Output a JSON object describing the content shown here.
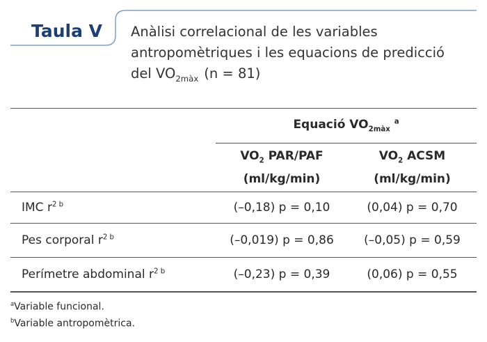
{
  "header": {
    "label": "Taula V",
    "title": {
      "line1": "Anàlisi correlacional de les variables",
      "line2": "antropomètriques i les equacions de predicció",
      "line3": "del VO",
      "line3_sub": "2màx",
      "line3_after": "(n = 81)"
    }
  },
  "table": {
    "group_header": {
      "text": "Equació VO",
      "sub": "2màx",
      "sup": "a"
    },
    "columns": [
      {
        "text": "VO",
        "sub": "2",
        "after": "PAR/PAF",
        "unit": "(ml/kg/min)"
      },
      {
        "text": "VO",
        "sub": "2",
        "after": "ACSM",
        "unit": "(ml/kg/min)"
      }
    ],
    "rows": [
      {
        "label": "IMC r",
        "sup": "2 b",
        "cells": [
          "(–0,18) p = 0,10",
          "(0,04) p = 0,70"
        ]
      },
      {
        "label": "Pes corporal r",
        "sup": "2 b",
        "cells": [
          "(–0,019) p = 0,86",
          "(–0,05) p = 0,59"
        ]
      },
      {
        "label": "Perímetre abdominal r",
        "sup": "2 b",
        "cells": [
          "(–0,23) p = 0,39",
          "(0,06) p = 0,55"
        ]
      }
    ]
  },
  "footnotes": [
    {
      "mark": "a",
      "text": "Variable funcional."
    },
    {
      "mark": "b",
      "text": "Variable antropomètrica."
    }
  ]
}
